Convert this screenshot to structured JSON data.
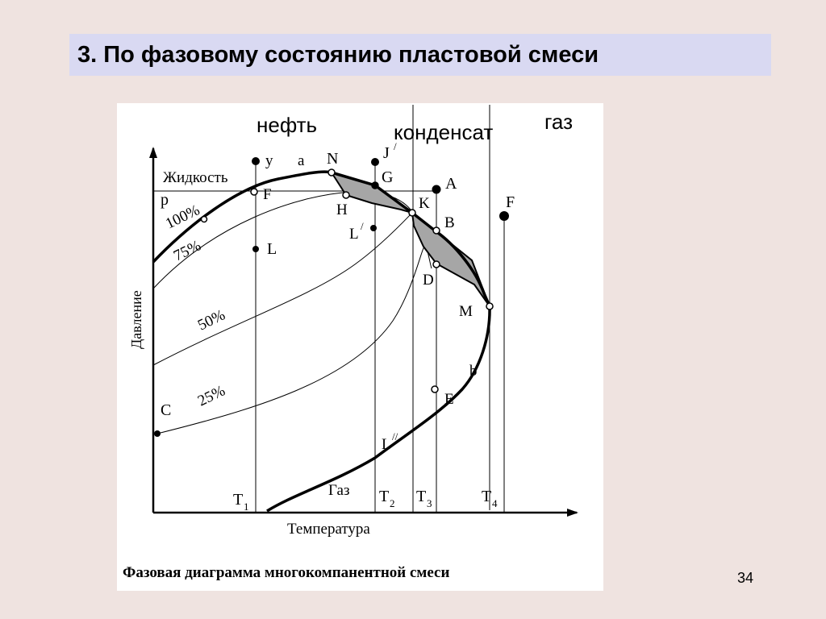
{
  "slide": {
    "title": "3.  По фазовому состоянию пластовой смеси",
    "page_number": "34"
  },
  "diagram": {
    "caption": "Фазовая диаграмма многокомпанентной смеси",
    "axis_y_label": "Давление",
    "axis_x_label": "Температура",
    "regions": {
      "oil": "нефть",
      "condensate": "конденсат",
      "gas": "газ"
    },
    "phase_labels": {
      "liquid": "Жидкость",
      "gas": "Газ"
    },
    "percent_labels": [
      "100%",
      "75%",
      "50%",
      "25%"
    ],
    "temperature_labels": {
      "t1_main": "T",
      "t1_sub": "1",
      "t2_main": "T",
      "t2_sub": "2",
      "t3_main": "T",
      "t3_sub": "3",
      "t4_main": "T",
      "t4_sub": "4"
    },
    "point_labels": {
      "y": "y",
      "a": "a",
      "N": "N",
      "J": "J",
      "J_prime": "/",
      "G": "G",
      "A": "A",
      "p": "p",
      "F1": "F",
      "H": "H",
      "K": "K",
      "F2": "F",
      "L": "L",
      "L1": "L",
      "L1_prime": "/",
      "B": "B",
      "D": "D",
      "M": "M",
      "b": "b",
      "E": "E",
      "C": "C",
      "L2": "L",
      "L2_prime": "//"
    }
  }
}
